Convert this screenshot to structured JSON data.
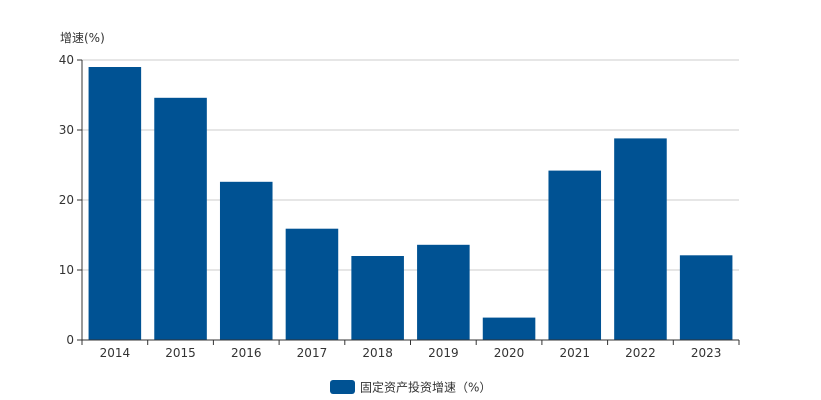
{
  "chart_data": {
    "type": "bar",
    "ylabel": "增速(%)",
    "categories": [
      "2014",
      "2015",
      "2016",
      "2017",
      "2018",
      "2019",
      "2020",
      "2021",
      "2022",
      "2023"
    ],
    "series": [
      {
        "name": "固定资产投资增速（%）",
        "values": [
          39.0,
          34.6,
          22.6,
          15.9,
          12.0,
          13.6,
          3.2,
          24.2,
          28.8,
          12.1
        ],
        "color": "#005293"
      }
    ],
    "ylim": [
      0,
      40
    ],
    "yticks": [
      "0",
      "10",
      "20",
      "30",
      "40"
    ],
    "grid": true,
    "legend_position": "bottom-center"
  }
}
